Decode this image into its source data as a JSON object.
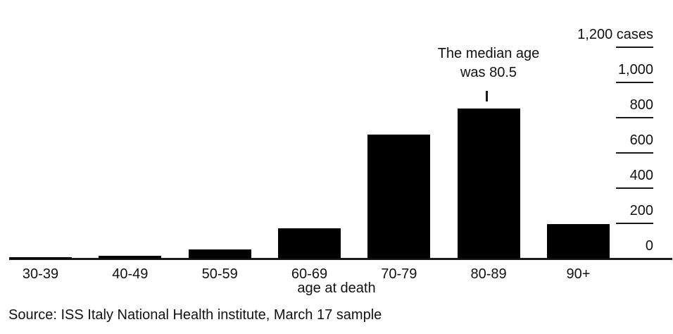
{
  "chart_data": {
    "type": "bar",
    "title": "",
    "categories": [
      "30-39",
      "40-49",
      "50-59",
      "60-69",
      "70-79",
      "80-89",
      "90+"
    ],
    "values": [
      10,
      18,
      52,
      173,
      705,
      852,
      196
    ],
    "xlabel": "age at death",
    "ylabel": "cases",
    "ylim": [
      0,
      1200
    ],
    "y_ticks": [
      0,
      200,
      400,
      600,
      800,
      1000,
      1200
    ],
    "y_tick_labels": [
      "0",
      "200",
      "400",
      "600",
      "800",
      "1,000",
      "1,200 cases"
    ],
    "axis_position": "right",
    "grid": false,
    "legend": "none",
    "bar_color": "#000000",
    "axis_color": "#1a1a1a",
    "text_color": "#111111",
    "background_color": "#ffffff",
    "annotation": {
      "lines": [
        "The median age",
        "was 80.5"
      ],
      "target_category": "80-89",
      "marker": "vertical-tick"
    },
    "source": "Source: ISS Italy National Health institute, March 17 sample"
  }
}
